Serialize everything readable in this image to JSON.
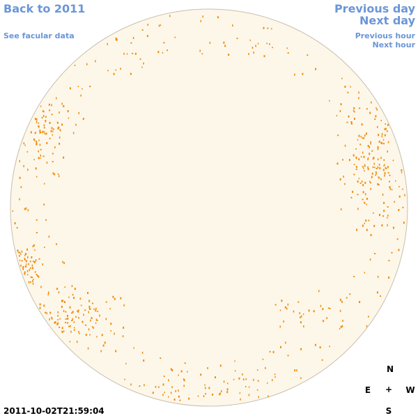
{
  "nav": {
    "back_label": "Back to 2011",
    "facular_label": "See facular data",
    "prev_day_label": "Previous day",
    "next_day_label": "Next day",
    "prev_hour_label": "Previous hour",
    "next_hour_label": "Next hour",
    "link_color": "#6a96d8"
  },
  "timestamp": "2011-10-02T21:59:04",
  "compass": {
    "north": "N",
    "south": "S",
    "east": "E",
    "west": "W",
    "center": "+"
  },
  "disk": {
    "fill_color": "#fdf7ea",
    "edge_color": "#c8bfae",
    "spot_color": "#ef8c0d"
  }
}
